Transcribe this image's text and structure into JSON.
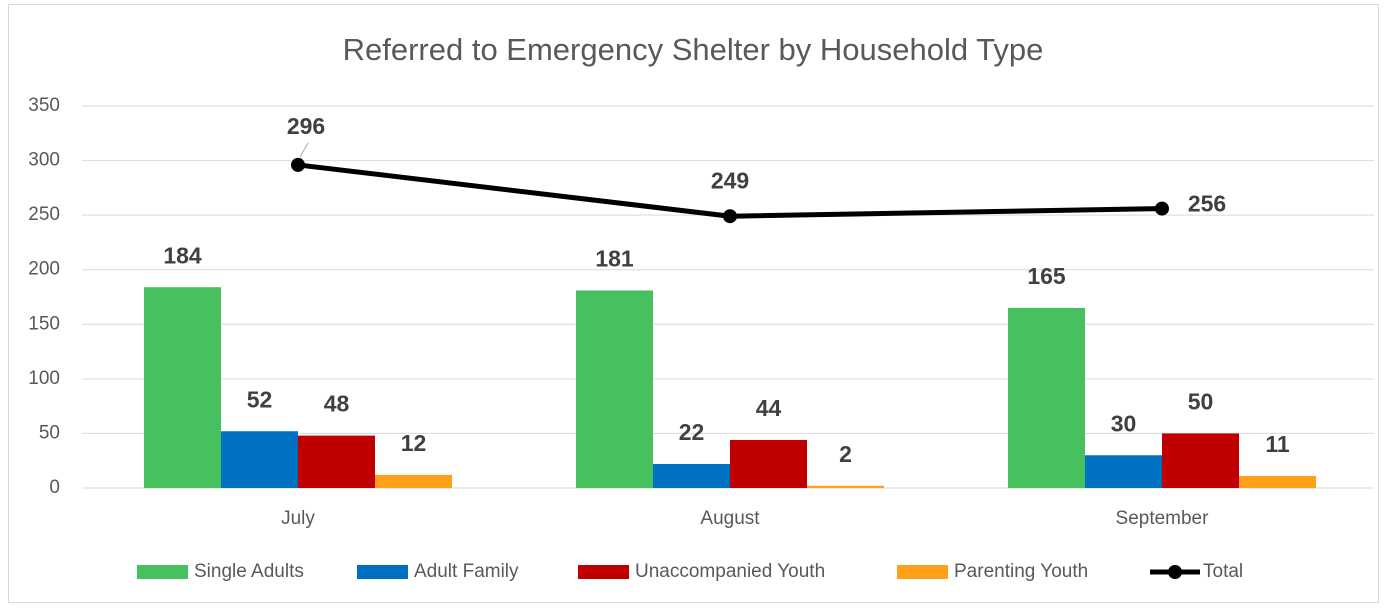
{
  "chart_data": {
    "type": "bar",
    "title": "Referred to Emergency Shelter by Household Type",
    "categories": [
      "July",
      "August",
      "September"
    ],
    "series": [
      {
        "name": "Single Adults",
        "color": "#47c15f",
        "values": [
          184,
          181,
          165
        ]
      },
      {
        "name": "Adult Family",
        "color": "#0070c0",
        "values": [
          52,
          22,
          30
        ]
      },
      {
        "name": "Unaccompanied Youth",
        "color": "#c00000",
        "values": [
          48,
          44,
          50
        ]
      },
      {
        "name": "Parenting Youth",
        "color": "#ff9f1a",
        "values": [
          12,
          2,
          11
        ]
      },
      {
        "name": "Total",
        "type": "line",
        "color": "#000000",
        "values": [
          296,
          249,
          256
        ]
      }
    ],
    "ylim": [
      0,
      350
    ],
    "yticks": [
      0,
      50,
      100,
      150,
      200,
      250,
      300,
      350
    ],
    "grid": true,
    "legend": "bottom"
  }
}
